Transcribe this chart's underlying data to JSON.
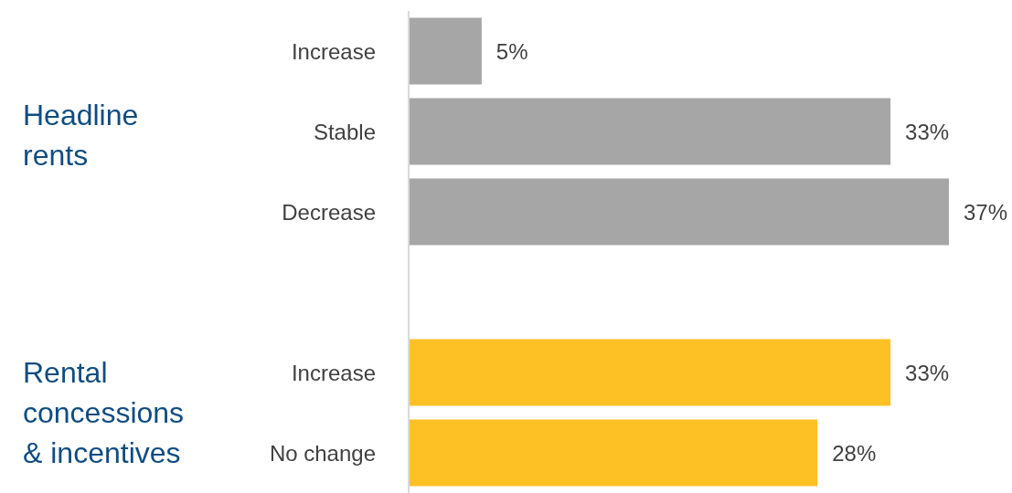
{
  "chart_data": {
    "type": "bar",
    "orientation": "horizontal",
    "categories": [
      "Increase",
      "Stable",
      "Decrease",
      null,
      "Increase",
      "No change"
    ],
    "values": [
      5,
      33,
      37,
      null,
      33,
      28
    ],
    "colors": [
      "#a6a6a6",
      "#a6a6a6",
      "#a6a6a6",
      null,
      "#fdc125",
      "#fdc125"
    ],
    "value_labels": [
      "5%",
      "33%",
      "37%",
      null,
      "33%",
      "28%"
    ],
    "annotations": [
      "Headline rents",
      "Rental concessions & incentives"
    ]
  }
}
